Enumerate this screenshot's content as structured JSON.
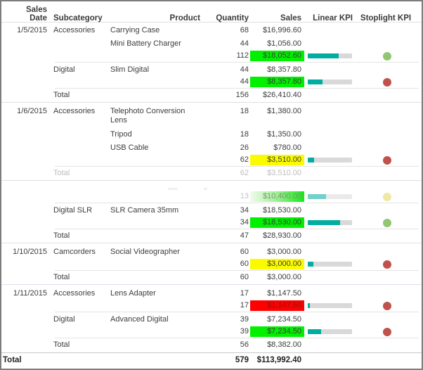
{
  "header": {
    "columns": [
      "Sales Date",
      "Subcategory",
      "Product",
      "Quantity",
      "Sales",
      "Linear KPI",
      "Stoplight KPI"
    ]
  },
  "colors": {
    "kpi_bar_fill": "#00ada0",
    "kpi_bar_track": "#d9d9d9",
    "sales_bg_green": "#00f000",
    "sales_bg_yellow": "#fbfb00",
    "sales_bg_red": "#fe0000",
    "red_cell_text": "#8b1616",
    "stoplight_green": "#92c672",
    "stoplight_red": "#c0524d",
    "stoplight_yellow": "#ebe38d"
  },
  "rows": [
    {
      "type": "detail",
      "date": "1/5/2015",
      "subcategory": "Accessories",
      "product": "Carrying Case",
      "quantity": "68",
      "sales": "$16,996.60"
    },
    {
      "type": "detail",
      "product": "Mini Battery Charger",
      "quantity": "44",
      "sales": "$1,056.00"
    },
    {
      "type": "subtotal",
      "quantity": "112",
      "sales": "$18,052.60",
      "sales_bg": "green",
      "kpi": 0.7,
      "light": "green"
    },
    {
      "type": "sep-sub"
    },
    {
      "type": "detail",
      "subcategory": "Digital",
      "product": "Slim Digital",
      "quantity": "44",
      "sales": "$8,357.80"
    },
    {
      "type": "subtotal",
      "quantity": "44",
      "sales": "$8,357.80",
      "sales_bg": "green",
      "kpi": 0.33,
      "light": "red"
    },
    {
      "type": "sep-sub"
    },
    {
      "type": "total",
      "label": "Total",
      "quantity": "156",
      "sales": "$26,410.40"
    },
    {
      "type": "sep-group"
    },
    {
      "type": "detail",
      "wrap": true,
      "date": "1/6/2015",
      "subcategory": "Accessories",
      "product": "Telephoto Conversion Lens",
      "quantity": "18",
      "sales": "$1,380.00"
    },
    {
      "type": "detail",
      "product": "Tripod",
      "quantity": "18",
      "sales": "$1,350.00"
    },
    {
      "type": "detail",
      "product": "USB Cable",
      "quantity": "26",
      "sales": "$780.00"
    },
    {
      "type": "subtotal",
      "quantity": "62",
      "sales": "$3,510.00",
      "sales_bg": "yellow",
      "kpi": 0.14,
      "light": "red"
    },
    {
      "type": "sep-sub"
    },
    {
      "type": "total",
      "label": "Total",
      "quantity": "62",
      "sales": "$3,510.00",
      "faded": true
    },
    {
      "type": "sep-group"
    },
    {
      "type": "ghost"
    },
    {
      "type": "subtotal",
      "quantity": "13",
      "sales": "$10,400.00",
      "sales_bg": "green-fade",
      "kpi": 0.41,
      "light": "yellow",
      "faded": true
    },
    {
      "type": "sep-sub"
    },
    {
      "type": "detail",
      "subcategory": "Digital SLR",
      "product": "SLR Camera 35mm",
      "quantity": "34",
      "sales": "$18,530.00"
    },
    {
      "type": "subtotal",
      "quantity": "34",
      "sales": "$18,530.00",
      "sales_bg": "green",
      "kpi": 0.73,
      "light": "green"
    },
    {
      "type": "sep-sub"
    },
    {
      "type": "total",
      "label": "Total",
      "quantity": "47",
      "sales": "$28,930.00"
    },
    {
      "type": "sep-group"
    },
    {
      "type": "detail",
      "date": "1/10/2015",
      "subcategory": "Camcorders",
      "product": "Social Videographer",
      "quantity": "60",
      "sales": "$3,000.00"
    },
    {
      "type": "subtotal",
      "quantity": "60",
      "sales": "$3,000.00",
      "sales_bg": "yellow",
      "kpi": 0.13,
      "light": "red"
    },
    {
      "type": "sep-sub"
    },
    {
      "type": "total",
      "label": "Total",
      "quantity": "60",
      "sales": "$3,000.00"
    },
    {
      "type": "sep-group"
    },
    {
      "type": "detail",
      "date": "1/11/2015",
      "subcategory": "Accessories",
      "product": "Lens Adapter",
      "quantity": "17",
      "sales": "$1,147.50"
    },
    {
      "type": "subtotal",
      "quantity": "17",
      "sales": "$1,147.50",
      "sales_bg": "red",
      "kpi": 0.05,
      "light": "red"
    },
    {
      "type": "sep-sub"
    },
    {
      "type": "detail",
      "subcategory": "Digital",
      "product": "Advanced Digital",
      "quantity": "39",
      "sales": "$7,234.50"
    },
    {
      "type": "subtotal",
      "quantity": "39",
      "sales": "$7,234.50",
      "sales_bg": "green",
      "kpi": 0.3,
      "light": "red"
    },
    {
      "type": "sep-sub"
    },
    {
      "type": "total",
      "label": "Total",
      "quantity": "56",
      "sales": "$8,382.00"
    }
  ],
  "grand_total": {
    "label": "Total",
    "quantity": "579",
    "sales": "$113,992.40"
  },
  "chart_data": {
    "type": "table",
    "columns": [
      "Sales Date",
      "Subcategory",
      "Product",
      "Quantity",
      "Sales",
      "Linear KPI (fraction)",
      "Stoplight KPI"
    ],
    "rows": [
      [
        "1/5/2015",
        "Accessories",
        "Carrying Case",
        "68",
        "$16,996.60",
        "",
        ""
      ],
      [
        "",
        "",
        "Mini Battery Charger",
        "44",
        "$1,056.00",
        "",
        ""
      ],
      [
        "",
        "",
        "(subtotal)",
        "112",
        "$18,052.60",
        "0.70",
        "green"
      ],
      [
        "",
        "Digital",
        "Slim Digital",
        "44",
        "$8,357.80",
        "",
        ""
      ],
      [
        "",
        "",
        "(subtotal)",
        "44",
        "$8,357.80",
        "0.33",
        "red"
      ],
      [
        "",
        "Total",
        "",
        "156",
        "$26,410.40",
        "",
        ""
      ],
      [
        "1/6/2015",
        "Accessories",
        "Telephoto Conversion Lens",
        "18",
        "$1,380.00",
        "",
        ""
      ],
      [
        "",
        "",
        "Tripod",
        "18",
        "$1,350.00",
        "",
        ""
      ],
      [
        "",
        "",
        "USB Cable",
        "26",
        "$780.00",
        "",
        ""
      ],
      [
        "",
        "",
        "(subtotal)",
        "62",
        "$3,510.00",
        "0.14",
        "red"
      ],
      [
        "",
        "Total",
        "",
        "62",
        "$3,510.00",
        "",
        ""
      ],
      [
        "",
        "",
        "(faded subtotal)",
        "13",
        "$10,400.00",
        "0.41",
        "yellow"
      ],
      [
        "",
        "Digital SLR",
        "SLR Camera 35mm",
        "34",
        "$18,530.00",
        "",
        ""
      ],
      [
        "",
        "",
        "(subtotal)",
        "34",
        "$18,530.00",
        "0.73",
        "green"
      ],
      [
        "",
        "Total",
        "",
        "47",
        "$28,930.00",
        "",
        ""
      ],
      [
        "1/10/2015",
        "Camcorders",
        "Social Videographer",
        "60",
        "$3,000.00",
        "",
        ""
      ],
      [
        "",
        "",
        "(subtotal)",
        "60",
        "$3,000.00",
        "0.13",
        "red"
      ],
      [
        "",
        "Total",
        "",
        "60",
        "$3,000.00",
        "",
        ""
      ],
      [
        "1/11/2015",
        "Accessories",
        "Lens Adapter",
        "17",
        "$1,147.50",
        "",
        ""
      ],
      [
        "",
        "",
        "(subtotal)",
        "17",
        "$1,147.50",
        "0.05",
        "red"
      ],
      [
        "",
        "Digital",
        "Advanced Digital",
        "39",
        "$7,234.50",
        "",
        ""
      ],
      [
        "",
        "",
        "(subtotal)",
        "39",
        "$7,234.50",
        "0.30",
        "red"
      ],
      [
        "",
        "Total",
        "",
        "56",
        "$8,382.00",
        "",
        ""
      ],
      [
        "Total",
        "",
        "",
        "579",
        "$113,992.40",
        "",
        ""
      ]
    ],
    "title": "",
    "legend_position": "none",
    "grid": false
  }
}
